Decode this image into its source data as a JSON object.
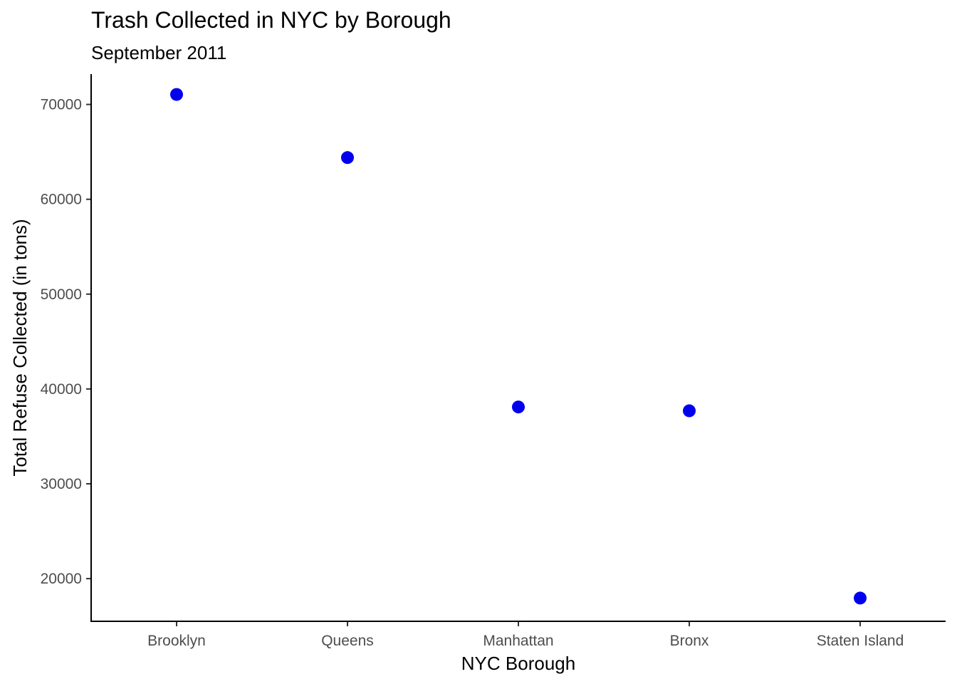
{
  "chart_data": {
    "type": "scatter",
    "title": "Trash Collected in NYC by Borough",
    "subtitle": "September 2011",
    "xlabel": "NYC Borough",
    "ylabel": "Total Refuse Collected (in tons)",
    "categories": [
      "Brooklyn",
      "Queens",
      "Manhattan",
      "Bronx",
      "Staten Island"
    ],
    "values": [
      71050,
      64400,
      38100,
      37700,
      17950
    ],
    "yticks": [
      20000,
      30000,
      40000,
      50000,
      60000,
      70000
    ],
    "ylim": [
      15500,
      73200
    ],
    "point_color": "#0000ee",
    "grid": false,
    "legend": "none"
  }
}
